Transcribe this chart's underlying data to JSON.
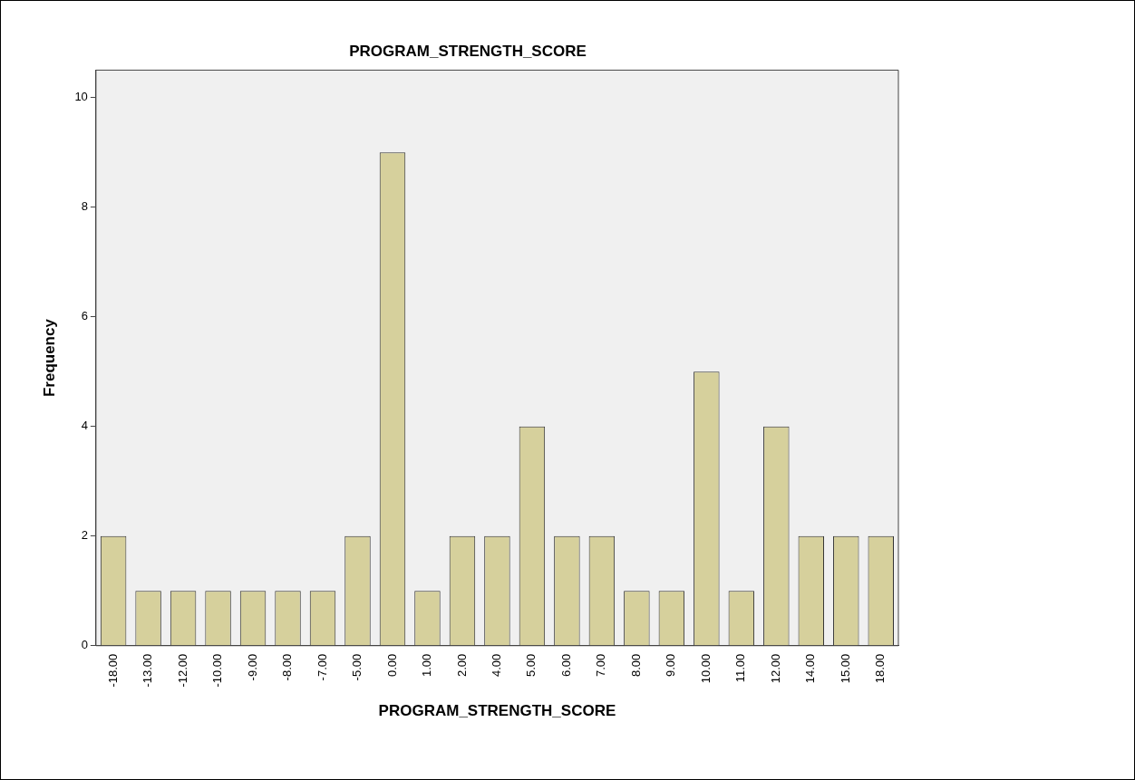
{
  "chart_data": {
    "type": "bar",
    "title": "PROGRAM_STRENGTH_SCORE",
    "xlabel": "PROGRAM_STRENGTH_SCORE",
    "ylabel": "Frequency",
    "categories": [
      "-18.00",
      "-13.00",
      "-12.00",
      "-10.00",
      "-9.00",
      "-8.00",
      "-7.00",
      "-5.00",
      "0.00",
      "1.00",
      "2.00",
      "4.00",
      "5.00",
      "6.00",
      "7.00",
      "8.00",
      "9.00",
      "10.00",
      "11.00",
      "12.00",
      "14.00",
      "15.00",
      "18.00"
    ],
    "values": [
      2,
      1,
      1,
      1,
      1,
      1,
      1,
      2,
      9,
      1,
      2,
      2,
      4,
      2,
      2,
      1,
      1,
      5,
      1,
      4,
      2,
      2,
      2
    ],
    "color": "#d6d09c",
    "ylim": [
      0,
      10.5
    ],
    "yticks": [
      0,
      2,
      4,
      6,
      8,
      10
    ],
    "grid": false,
    "legend": false
  }
}
